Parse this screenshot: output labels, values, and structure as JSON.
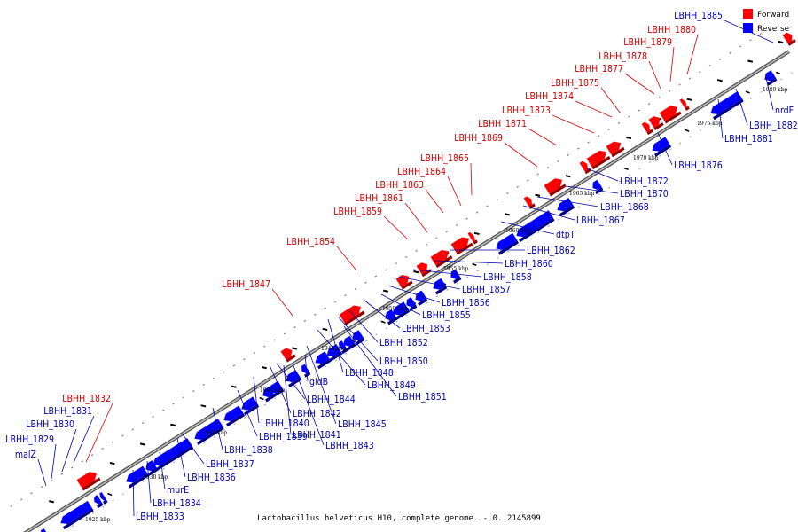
{
  "caption": "Lactobacillus helveticus H10, complete genome. - 0..2145899",
  "legend": [
    {
      "label": "Forward",
      "color": "#ff0000"
    },
    {
      "label": "Reverse",
      "color": "#0000ff"
    }
  ],
  "colors": {
    "forward": "#ff0000",
    "forward_label": "#cc0000",
    "reverse": "#0000ff",
    "reverse_label": "#0000aa",
    "backbone": "#888888"
  },
  "kbp_ticks": [
    "1925 kbp",
    "1930 kbp",
    "1935 kbp",
    "1940 kbp",
    "1945 kbp",
    "1950 kbp",
    "1955 kbp",
    "1960 kbp",
    "1965 kbp",
    "1970 kbp",
    "1975 kbp",
    "1980 kbp"
  ],
  "forward_labels": [
    "LBHH_1832",
    "LBHH_1847",
    "LBHH_1854",
    "LBHH_1859",
    "LBHH_1861",
    "LBHH_1863",
    "LBHH_1864",
    "LBHH_1865",
    "LBHH_1869",
    "LBHH_1871",
    "LBHH_1873",
    "LBHH_1874",
    "LBHH_1875",
    "LBHH_1877",
    "LBHH_1878",
    "LBHH_1879",
    "LBHH_1880"
  ],
  "reverse_labels_top": [
    "LBHH_1885",
    "LBHH_1831",
    "LBHH_1830",
    "LBHH_1829",
    "malZ"
  ],
  "reverse_labels": [
    "nrdF",
    "LBHH_1882",
    "LBHH_1881",
    "LBHH_1876",
    "LBHH_1872",
    "LBHH_1870",
    "LBHH_1868",
    "LBHH_1867",
    "dtpT",
    "LBHH_1862",
    "LBHH_1860",
    "LBHH_1858",
    "LBHH_1857",
    "LBHH_1856",
    "LBHH_1855",
    "LBHH_1853",
    "LBHH_1852",
    "LBHH_1850",
    "LBHH_1848",
    "LBHH_1849",
    "LBHH_1851",
    "gidB",
    "LBHH_1844",
    "LBHH_1842",
    "LBHH_1845",
    "LBHH_1840",
    "LBHH_1841",
    "LBHH_1839",
    "LBHH_1843",
    "LBHH_1838",
    "LBHH_1837",
    "LBHH_1836",
    "murE",
    "LBHH_1834",
    "LBHH_1833"
  ]
}
